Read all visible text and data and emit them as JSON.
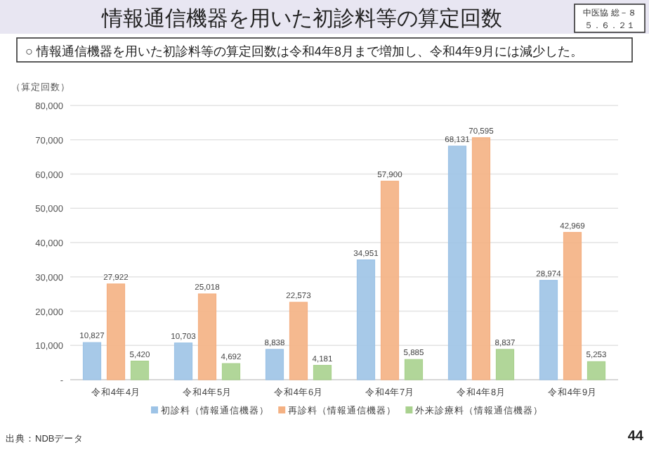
{
  "chart_data": {
    "type": "bar",
    "title": "情報通信機器を用いた初診料等の算定回数",
    "subtitle": "○  情報通信機器を用いた初診料等の算定回数は令和4年8月まで増加し、令和4年9月には減少した。",
    "ylabel": "（算定回数）",
    "categories": [
      "令和4年4月",
      "令和4年5月",
      "令和4年6月",
      "令和4年7月",
      "令和4年8月",
      "令和4年9月"
    ],
    "series": [
      {
        "name": "初診料（情報通信機器）",
        "color": "#9dc3e6",
        "values": [
          10827,
          10703,
          8838,
          34951,
          68131,
          28974
        ],
        "value_labels": [
          "10,827",
          "10,703",
          "8,838",
          "34,951",
          "68,131",
          "28,974"
        ]
      },
      {
        "name": "再診料（情報通信機器）",
        "color": "#f4b183",
        "values": [
          27922,
          25018,
          22573,
          57900,
          70595,
          42969
        ],
        "value_labels": [
          "27,922",
          "25,018",
          "22,573",
          "57,900",
          "70,595",
          "42,969"
        ]
      },
      {
        "name": "外来診療料（情報通信機器）",
        "color": "#a9d18e",
        "values": [
          5420,
          4692,
          4181,
          5885,
          8837,
          5253
        ],
        "value_labels": [
          "5,420",
          "4,692",
          "4,181",
          "5,885",
          "8,837",
          "5,253"
        ]
      }
    ],
    "ylim": [
      0,
      80000
    ],
    "yticks": [
      {
        "value": 0,
        "label": "-"
      },
      {
        "value": 10000,
        "label": "10,000"
      },
      {
        "value": 20000,
        "label": "20,000"
      },
      {
        "value": 30000,
        "label": "30,000"
      },
      {
        "value": 40000,
        "label": "40,000"
      },
      {
        "value": 50000,
        "label": "50,000"
      },
      {
        "value": 60000,
        "label": "60,000"
      },
      {
        "value": 70000,
        "label": "70,000"
      },
      {
        "value": 80000,
        "label": "80,000"
      }
    ],
    "grid": "y",
    "legend": "bottom",
    "annotations": [
      "中医協  総－８",
      "５．６．２１",
      "出典：NDBデータ",
      "44"
    ]
  }
}
